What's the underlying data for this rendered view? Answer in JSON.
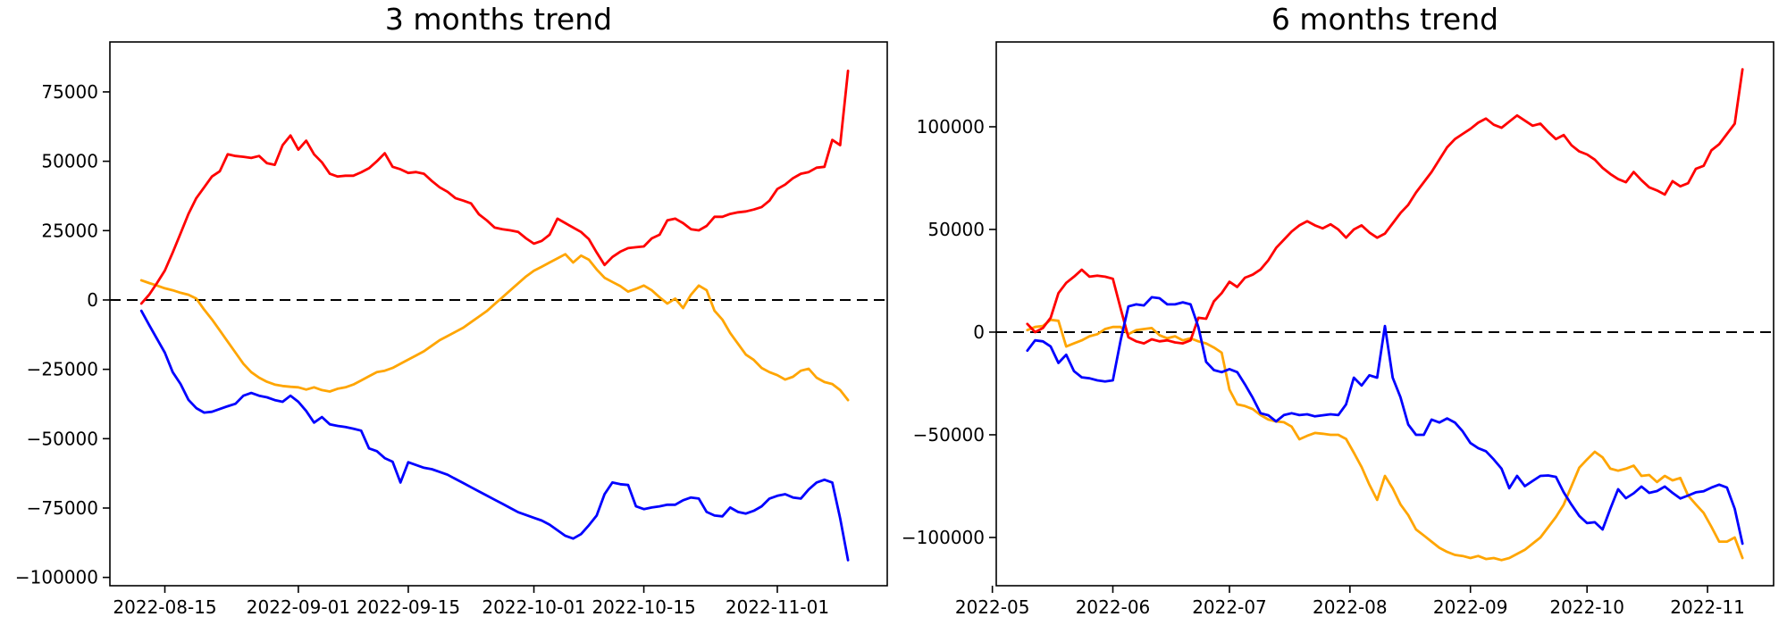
{
  "page": {
    "background": "#ffffff",
    "figure_kind": "matplotlib-line-charts"
  },
  "chart_data": [
    {
      "type": "line",
      "title": "3 months trend",
      "xlabel": "",
      "ylabel": "",
      "grid": false,
      "legend": null,
      "zero_line": true,
      "x_axis": {
        "lim": [
          "2022-08-08",
          "2022-11-15"
        ],
        "ticks": [
          {
            "date": "2022-08-15",
            "label": "2022-08-15"
          },
          {
            "date": "2022-09-01",
            "label": "2022-09-01"
          },
          {
            "date": "2022-09-15",
            "label": "2022-09-15"
          },
          {
            "date": "2022-10-01",
            "label": "2022-10-01"
          },
          {
            "date": "2022-10-15",
            "label": "2022-10-15"
          },
          {
            "date": "2022-11-01",
            "label": "2022-11-01"
          }
        ]
      },
      "y_axis": {
        "lim": [
          -103000,
          93000
        ],
        "ticks": [
          75000,
          50000,
          25000,
          0,
          -25000,
          -50000,
          -75000,
          -100000
        ]
      },
      "series": [
        {
          "name": "orange",
          "color": "#ffa500",
          "start": "2022-08-12",
          "step_days": 1,
          "values": [
            7100,
            6100,
            5200,
            4200,
            3500,
            2600,
            1900,
            500,
            -3500,
            -7000,
            -11000,
            -15000,
            -19000,
            -23000,
            -26000,
            -28000,
            -29500,
            -30500,
            -31000,
            -31300,
            -31500,
            -32300,
            -31500,
            -32500,
            -33000,
            -32000,
            -31500,
            -30500,
            -29000,
            -27500,
            -26000,
            -25500,
            -24500,
            -23000,
            -21500,
            -20000,
            -18500,
            -16500,
            -14500,
            -13000,
            -11500,
            -10000,
            -8000,
            -6000,
            -4000,
            -1500,
            1000,
            3500,
            6000,
            8500,
            10500,
            12000,
            13500,
            15000,
            16500,
            13500,
            16000,
            14500,
            11000,
            8000,
            6500,
            5000,
            3000,
            4000,
            5200,
            3500,
            1000,
            -1300,
            500,
            -2900,
            1900,
            5200,
            3500,
            -3900,
            -7100,
            -11900,
            -15800,
            -19700,
            -21600,
            -24500,
            -26000,
            -27100,
            -28700,
            -27700,
            -25500,
            -24800,
            -28000,
            -29600,
            -30300,
            -32500,
            -36100
          ]
        },
        {
          "name": "red",
          "color": "#ff0000",
          "start": "2022-08-12",
          "step_days": 1,
          "values": [
            -1300,
            1900,
            6100,
            10600,
            17100,
            24000,
            31000,
            36700,
            40600,
            44500,
            46400,
            52500,
            51900,
            51600,
            51200,
            51900,
            49300,
            48700,
            55800,
            59300,
            54200,
            57400,
            52500,
            49600,
            45500,
            44500,
            44800,
            44800,
            46000,
            47500,
            50000,
            52900,
            48000,
            47100,
            45800,
            46100,
            45500,
            42900,
            40600,
            39000,
            36700,
            35800,
            34800,
            30900,
            28700,
            26100,
            25500,
            25100,
            24500,
            22200,
            20300,
            21300,
            23500,
            29300,
            27700,
            26100,
            24500,
            21900,
            17100,
            12600,
            15500,
            17400,
            18700,
            19000,
            19300,
            22200,
            23500,
            28700,
            29300,
            27700,
            25500,
            25100,
            26700,
            30000,
            30000,
            31000,
            31600,
            31900,
            32600,
            33500,
            35800,
            40000,
            41600,
            43900,
            45500,
            46100,
            47700,
            48000,
            57700,
            55800,
            82600
          ]
        },
        {
          "name": "blue",
          "color": "#0000ff",
          "start": "2022-08-12",
          "step_days": 1,
          "values": [
            -3900,
            -9000,
            -14000,
            -19000,
            -26000,
            -30300,
            -36000,
            -39000,
            -40600,
            -40300,
            -39300,
            -38300,
            -37400,
            -34500,
            -33500,
            -34500,
            -35100,
            -36100,
            -36700,
            -34500,
            -36700,
            -40000,
            -44200,
            -42200,
            -44800,
            -45400,
            -45800,
            -46400,
            -47100,
            -53500,
            -54500,
            -57000,
            -58300,
            -65800,
            -58500,
            -59500,
            -60500,
            -61000,
            -62000,
            -63000,
            -64500,
            -66000,
            -67500,
            -69000,
            -70500,
            -72000,
            -73500,
            -75000,
            -76500,
            -77500,
            -78500,
            -79500,
            -81000,
            -83000,
            -85000,
            -86000,
            -84400,
            -81200,
            -77700,
            -70000,
            -65800,
            -66400,
            -66700,
            -74400,
            -75400,
            -74800,
            -74400,
            -73800,
            -73800,
            -72200,
            -71200,
            -71600,
            -76400,
            -77700,
            -78000,
            -74800,
            -76400,
            -77000,
            -76000,
            -74400,
            -71600,
            -70600,
            -70000,
            -71200,
            -71600,
            -68300,
            -65800,
            -64800,
            -65800,
            -78700,
            -93800
          ]
        }
      ]
    },
    {
      "type": "line",
      "title": "6 months trend",
      "xlabel": "",
      "ylabel": "",
      "grid": false,
      "legend": null,
      "zero_line": true,
      "x_axis": {
        "lim": [
          "2022-05-02",
          "2022-11-18"
        ],
        "ticks": [
          {
            "date": "2022-05-01",
            "label": "2022-05"
          },
          {
            "date": "2022-06-01",
            "label": "2022-06"
          },
          {
            "date": "2022-07-01",
            "label": "2022-07"
          },
          {
            "date": "2022-08-01",
            "label": "2022-08"
          },
          {
            "date": "2022-09-01",
            "label": "2022-09"
          },
          {
            "date": "2022-10-01",
            "label": "2022-10"
          },
          {
            "date": "2022-11-01",
            "label": "2022-11"
          }
        ]
      },
      "y_axis": {
        "lim": [
          -123500,
          141300
        ],
        "ticks": [
          100000,
          50000,
          0,
          -50000,
          -100000
        ]
      },
      "series": [
        {
          "name": "orange",
          "color": "#ffa500",
          "start": "2022-05-10",
          "step_days": 2,
          "values": [
            1000,
            2500,
            3000,
            6000,
            5500,
            -7000,
            -5500,
            -4000,
            -2000,
            -1000,
            1500,
            2500,
            2500,
            -1000,
            1000,
            1500,
            2000,
            -1500,
            -3000,
            -2000,
            -4000,
            -3000,
            -4500,
            -5500,
            -7500,
            -10000,
            -28000,
            -35200,
            -36000,
            -37500,
            -40400,
            -42600,
            -43500,
            -43900,
            -46000,
            -52200,
            -50500,
            -49100,
            -49500,
            -50000,
            -50000,
            -52000,
            -58700,
            -65700,
            -74300,
            -81700,
            -70000,
            -76100,
            -83900,
            -89100,
            -96100,
            -99000,
            -102000,
            -105000,
            -107000,
            -108500,
            -109000,
            -110000,
            -109000,
            -110500,
            -110000,
            -111000,
            -110000,
            -108000,
            -106000,
            -103000,
            -100000,
            -95000,
            -90000,
            -84000,
            -75000,
            -66000,
            -62000,
            -58300,
            -61000,
            -66500,
            -67500,
            -66500,
            -65000,
            -70000,
            -69600,
            -73000,
            -70000,
            -72200,
            -71000,
            -79600,
            -83900,
            -88000,
            -94800,
            -102000,
            -102000,
            -100000,
            -110000
          ]
        },
        {
          "name": "red",
          "color": "#ff0000",
          "start": "2022-05-10",
          "step_days": 2,
          "values": [
            4000,
            0,
            2000,
            7000,
            19000,
            24000,
            27000,
            30400,
            27000,
            27500,
            27000,
            26000,
            11500,
            -2500,
            -4500,
            -5500,
            -3500,
            -4500,
            -4000,
            -5000,
            -5500,
            -4000,
            7000,
            6500,
            15000,
            19000,
            24500,
            22000,
            26500,
            28000,
            30500,
            35000,
            41000,
            45000,
            49000,
            52000,
            54000,
            52000,
            50500,
            52500,
            50000,
            46000,
            50000,
            52000,
            48500,
            46000,
            48000,
            53000,
            58000,
            62000,
            68000,
            73000,
            78000,
            84000,
            90000,
            94000,
            96500,
            99000,
            102000,
            104000,
            101000,
            99500,
            102500,
            105500,
            103000,
            100500,
            101500,
            97500,
            94000,
            96000,
            91000,
            88000,
            86500,
            84000,
            80000,
            77000,
            74500,
            73000,
            78000,
            74000,
            70500,
            69000,
            67000,
            73500,
            71000,
            72500,
            79500,
            81000,
            88500,
            91500,
            96500,
            101500,
            128000
          ]
        },
        {
          "name": "blue",
          "color": "#0000ff",
          "start": "2022-05-10",
          "step_days": 2,
          "values": [
            -9000,
            -4000,
            -4500,
            -7000,
            -15000,
            -11000,
            -19000,
            -22000,
            -22500,
            -23500,
            -24000,
            -23500,
            -4000,
            12500,
            13500,
            13000,
            17000,
            16500,
            13500,
            13500,
            14500,
            13500,
            2500,
            -14500,
            -18500,
            -19500,
            -18000,
            -19500,
            -25500,
            -32000,
            -39500,
            -40500,
            -43500,
            -40400,
            -39500,
            -40400,
            -40000,
            -41000,
            -40500,
            -40000,
            -40400,
            -35200,
            -22200,
            -26000,
            -21000,
            -22200,
            3000,
            -22200,
            -31700,
            -45000,
            -50000,
            -50000,
            -42600,
            -44000,
            -42000,
            -44000,
            -48300,
            -54000,
            -56500,
            -58000,
            -62000,
            -66500,
            -76000,
            -70000,
            -75000,
            -72500,
            -70000,
            -69800,
            -70500,
            -78000,
            -84000,
            -89500,
            -93000,
            -92600,
            -96100,
            -86000,
            -76500,
            -80900,
            -78500,
            -75200,
            -78300,
            -77400,
            -75200,
            -78300,
            -81000,
            -79600,
            -78000,
            -77500,
            -75700,
            -74300,
            -75700,
            -86000,
            -103000
          ]
        }
      ]
    }
  ]
}
